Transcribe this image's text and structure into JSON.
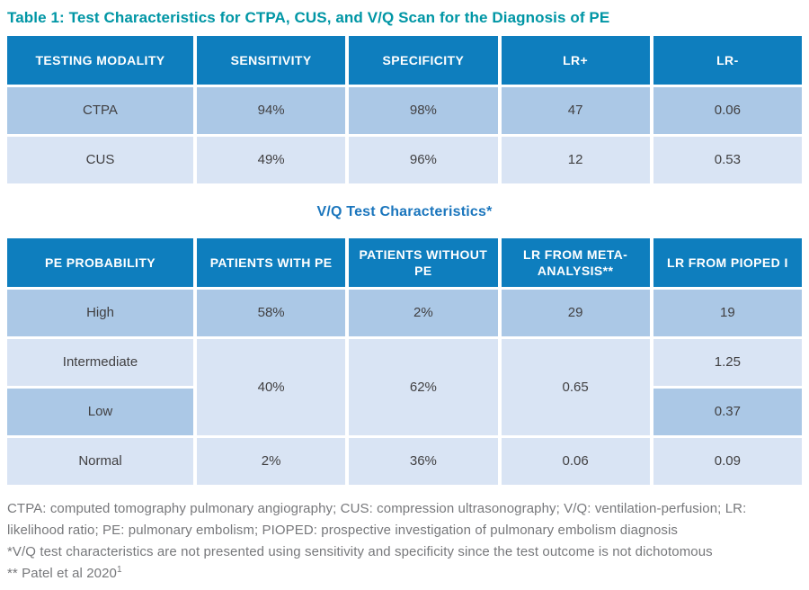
{
  "title": "Table 1: Test Characteristics for CTPA, CUS, and V/Q Scan for the Diagnosis of PE",
  "subtitle": "V/Q Test Characteristics*",
  "colors": {
    "header_bg": "#0E7EBE",
    "row_dark": "#ABC8E6",
    "row_light": "#D9E4F4",
    "title_teal": "#0096A5",
    "subtitle_blue": "#1B76BD",
    "cell_text": "#414042",
    "footnote_text": "#77787B",
    "background": "#FFFFFF"
  },
  "table1": {
    "headers": [
      "TESTING MODALITY",
      "SENSITIVITY",
      "SPECIFICITY",
      "LR+",
      "LR-"
    ],
    "rows": [
      {
        "modality": "CTPA",
        "sensitivity": "94%",
        "specificity": "98%",
        "lr_plus": "47",
        "lr_minus": "0.06"
      },
      {
        "modality": "CUS",
        "sensitivity": "49%",
        "specificity": "96%",
        "lr_plus": "12",
        "lr_minus": "0.53"
      }
    ]
  },
  "table2": {
    "headers": [
      "PE PROBABILITY",
      "PATIENTS WITH PE",
      "PATIENTS WITHOUT PE",
      "LR FROM META-ANALYSIS**",
      "LR FROM PIOPED I"
    ],
    "high": {
      "label": "High",
      "with_pe": "58%",
      "without_pe": "2%",
      "lr_meta": "29",
      "lr_pioped": "19"
    },
    "intermediate": {
      "label": "Intermediate",
      "lr_pioped": "1.25"
    },
    "merged_intermediate_low": {
      "with_pe": "40%",
      "without_pe": "62%",
      "lr_meta": "0.65"
    },
    "low": {
      "label": "Low",
      "lr_pioped": "0.37"
    },
    "normal": {
      "label": "Normal",
      "with_pe": "2%",
      "without_pe": "36%",
      "lr_meta": "0.06",
      "lr_pioped": "0.09"
    }
  },
  "footnotes": {
    "abbreviations": "CTPA: computed tomography pulmonary angiography; CUS: compression ultrasonography; V/Q: ventilation-perfusion; LR: likelihood ratio; PE: pulmonary embolism; PIOPED: prospective investigation of pulmonary embolism diagnosis",
    "asterisk_note": "*V/Q test characteristics are not presented using sensitivity and specificity since the test outcome is not dichotomous",
    "double_asterisk_note": "** Patel et al 2020",
    "citation_superscript": "1"
  }
}
